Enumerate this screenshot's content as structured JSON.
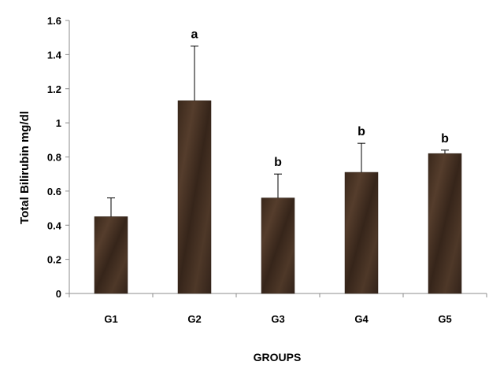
{
  "chart_data": {
    "type": "bar",
    "categories": [
      "G1",
      "G2",
      "G3",
      "G4",
      "G5"
    ],
    "values": [
      0.45,
      1.13,
      0.56,
      0.71,
      0.82
    ],
    "error_upper": [
      0.11,
      0.32,
      0.14,
      0.17,
      0.02
    ],
    "significance_labels": [
      "",
      "a",
      "b",
      "b",
      "b"
    ],
    "title": "",
    "xlabel": "GROUPS",
    "ylabel": "Total Bilirubin mg/dl",
    "ylim": [
      0,
      1.6
    ],
    "y_ticks": [
      0,
      0.2,
      0.4,
      0.6,
      0.8,
      1,
      1.2,
      1.4,
      1.6
    ],
    "y_tick_labels": [
      "0",
      "0.2",
      "0.4",
      "0.6",
      "0.8",
      "1",
      "1.2",
      "1.4",
      "1.6"
    ],
    "grid": false,
    "legend": "none",
    "bar_color": "#3d2a1c",
    "bar_highlight_color": "#5a4232",
    "axis_color": "#8c8c8c"
  }
}
